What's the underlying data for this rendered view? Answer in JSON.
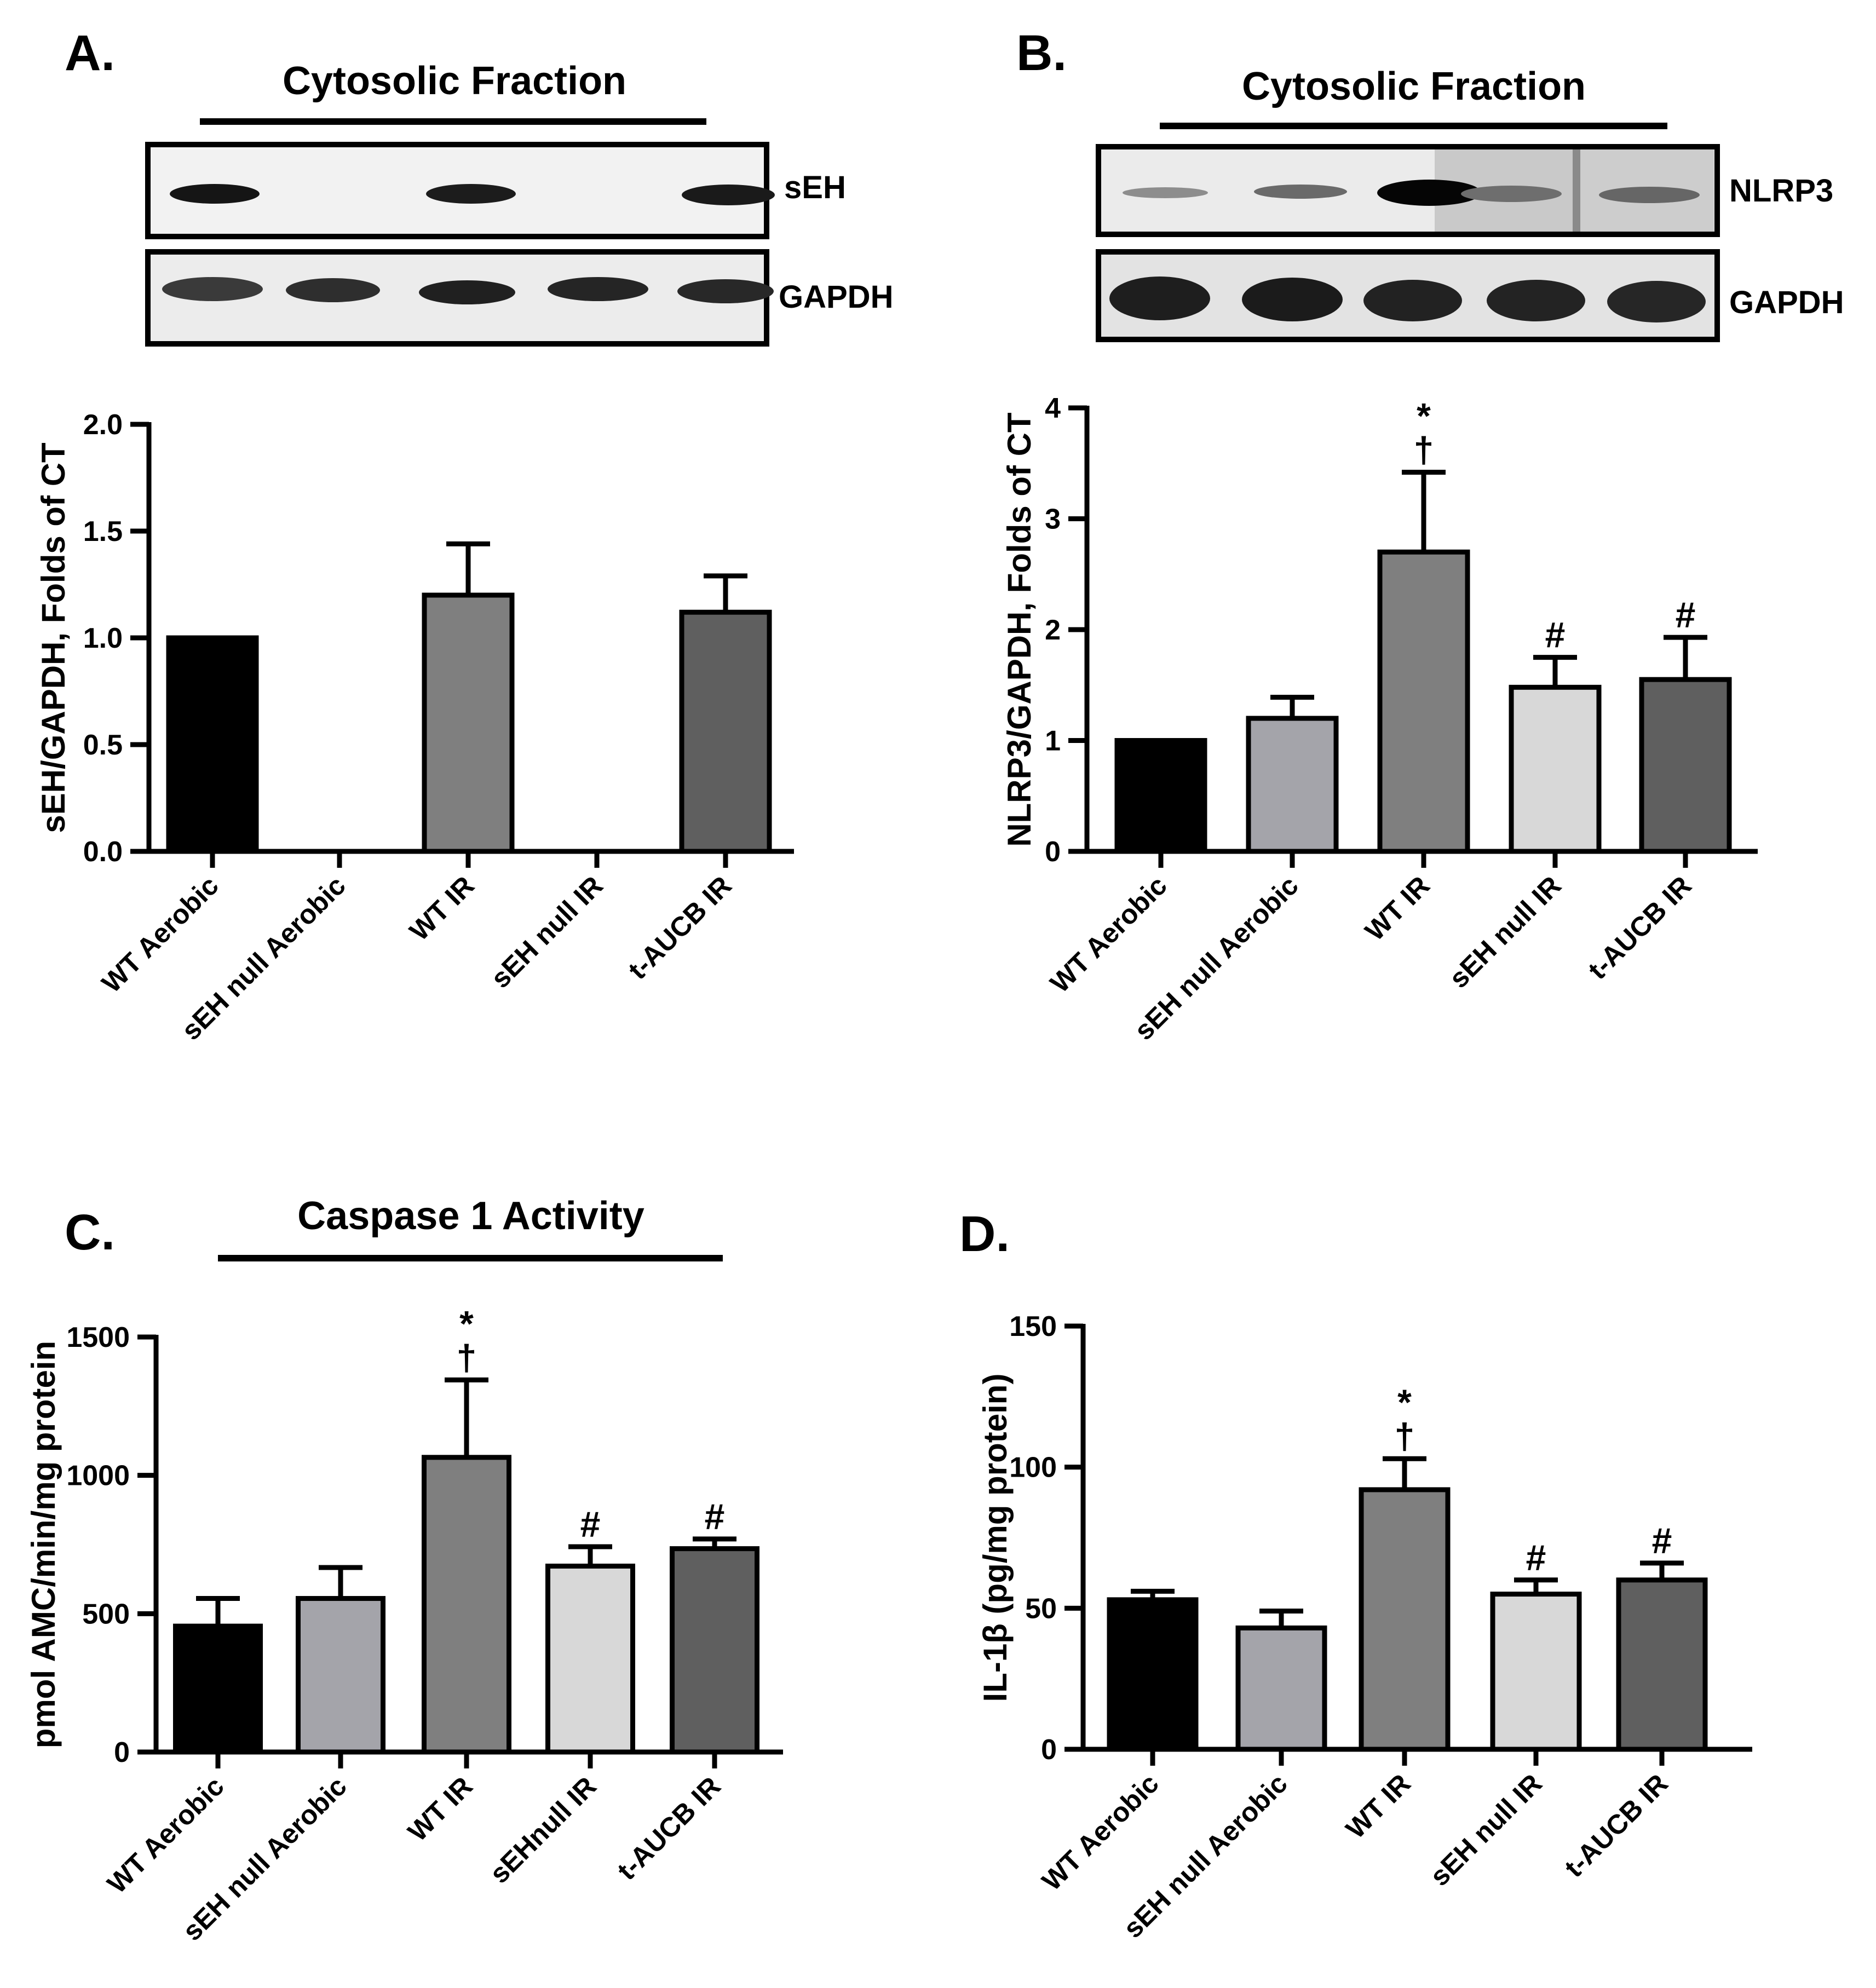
{
  "panels": {
    "a": {
      "letter": "A.",
      "title": "Cytosolic Fraction"
    },
    "b": {
      "letter": "B.",
      "title": "Cytosolic Fraction"
    },
    "c": {
      "letter": "C.",
      "title": "Caspase 1 Activity"
    },
    "d": {
      "letter": "D.",
      "title": ""
    }
  },
  "blots": {
    "a": {
      "top_label": "sEH",
      "bottom_label": "GAPDH"
    },
    "b": {
      "top_label": "NLRP3",
      "bottom_label": "GAPDH"
    }
  },
  "colors": {
    "wt_aerobic": "#000000",
    "seh_null_aerobic": "#a4a4aa",
    "wt_ir": "#7f7f7f",
    "seh_null_ir": "#d8d8d8",
    "t_aucb_ir": "#5f5f5f"
  },
  "chart_data": [
    {
      "id": "a",
      "type": "bar",
      "title": "Cytosolic Fraction",
      "ylabel": "sEH/GAPDH, Folds of CT",
      "xlabel": "",
      "categories": [
        "WT Aerobic",
        "sEH null Aerobic",
        "WT IR",
        "sEH null IR",
        "t-AUCB IR"
      ],
      "values": [
        1.0,
        0.0,
        1.2,
        0.0,
        1.12
      ],
      "errors": [
        0,
        0,
        0.24,
        0,
        0.17
      ],
      "significance": [
        "",
        "",
        "",
        "",
        ""
      ],
      "ylim": [
        0,
        2.0
      ],
      "yticks": [
        0.0,
        0.5,
        1.0,
        1.5,
        2.0
      ],
      "ytick_labels": [
        "0.0",
        "0.5",
        "1.0",
        "1.5",
        "2.0"
      ]
    },
    {
      "id": "b",
      "type": "bar",
      "title": "Cytosolic Fraction",
      "ylabel": "NLRP3/GAPDH, Folds of CT",
      "xlabel": "",
      "categories": [
        "WT Aerobic",
        "sEH null Aerobic",
        "WT IR",
        "sEH null IR",
        "t-AUCB IR"
      ],
      "values": [
        1.0,
        1.2,
        2.7,
        1.48,
        1.55
      ],
      "errors": [
        0,
        0.19,
        0.72,
        0.27,
        0.38
      ],
      "significance": [
        "",
        "",
        "*\n†",
        "#",
        "#"
      ],
      "ylim": [
        0,
        4
      ],
      "yticks": [
        0,
        1,
        2,
        3,
        4
      ],
      "ytick_labels": [
        "0",
        "1",
        "2",
        "3",
        "4"
      ]
    },
    {
      "id": "c",
      "type": "bar",
      "title": "Caspase 1 Activity",
      "ylabel": "pmol AMC/min/mg protein",
      "xlabel": "",
      "categories": [
        "WT Aerobic",
        "sEH null Aerobic",
        "WT IR",
        "sEHnull IR",
        "t-AUCB IR"
      ],
      "values": [
        455,
        555,
        1065,
        672,
        735
      ],
      "errors": [
        100,
        112,
        280,
        70,
        35
      ],
      "significance": [
        "",
        "",
        "*\n†",
        "#",
        "#"
      ],
      "ylim": [
        0,
        1500
      ],
      "yticks": [
        0,
        500,
        1000,
        1500
      ],
      "ytick_labels": [
        "0",
        "500",
        "1000",
        "1500"
      ]
    },
    {
      "id": "d",
      "type": "bar",
      "title": "",
      "ylabel": "IL-1β (pg/mg protein)",
      "xlabel": "",
      "categories": [
        "WT Aerobic",
        "sEH null Aerobic",
        "WT IR",
        "sEH null IR",
        "t-AUCB IR"
      ],
      "values": [
        53,
        43,
        92,
        55,
        60
      ],
      "errors": [
        3,
        6,
        11,
        5,
        6
      ],
      "significance": [
        "",
        "",
        "*\n†",
        "#",
        "#"
      ],
      "ylim": [
        0,
        150
      ],
      "yticks": [
        0,
        50,
        100,
        150
      ],
      "ytick_labels": [
        "0",
        "50",
        "100",
        "150"
      ]
    }
  ]
}
